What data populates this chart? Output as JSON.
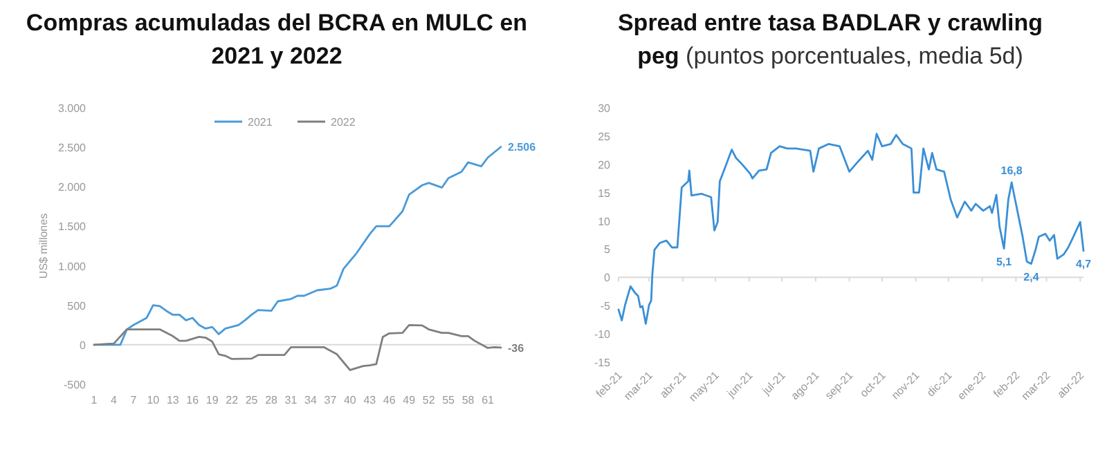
{
  "chart_data": [
    {
      "type": "line",
      "title": "Compras acumuladas del BCRA en MULC en 2021 y 2022",
      "ylabel": "US$ millones",
      "xlim": [
        1,
        63
      ],
      "xticks": [
        1,
        4,
        7,
        10,
        13,
        16,
        19,
        22,
        25,
        28,
        31,
        34,
        37,
        40,
        43,
        46,
        49,
        52,
        55,
        58,
        61
      ],
      "ylim": [
        -500,
        3000
      ],
      "yticks": [
        {
          "value": -500,
          "label": "-500"
        },
        {
          "value": 0,
          "label": "0"
        },
        {
          "value": 500,
          "label": "500"
        },
        {
          "value": 1000,
          "label": "1.000"
        },
        {
          "value": 1500,
          "label": "1.500"
        },
        {
          "value": 2000,
          "label": "2.000"
        },
        {
          "value": 2500,
          "label": "2.500"
        },
        {
          "value": 3000,
          "label": "3.000"
        }
      ],
      "legend": "top",
      "series": [
        {
          "name": "2021",
          "color": "#4a9ad8",
          "x": [
            1,
            3,
            5,
            6,
            7,
            9,
            10,
            11,
            12,
            13,
            14,
            15,
            16,
            17,
            18,
            19,
            20,
            21,
            23,
            24,
            25,
            26,
            28,
            29,
            31,
            32,
            33,
            35,
            37,
            38,
            39,
            41,
            43,
            44,
            46,
            48,
            49,
            51,
            52,
            54,
            55,
            57,
            58,
            60,
            61,
            63
          ],
          "values": [
            0,
            0,
            0,
            195,
            250,
            340,
            500,
            490,
            430,
            380,
            380,
            310,
            340,
            250,
            205,
            225,
            135,
            205,
            250,
            310,
            380,
            440,
            430,
            550,
            580,
            620,
            620,
            690,
            710,
            750,
            960,
            1160,
            1400,
            1500,
            1500,
            1690,
            1900,
            2020,
            2050,
            1990,
            2110,
            2190,
            2310,
            2260,
            2370,
            2506
          ],
          "value_labels": [
            null,
            null,
            null,
            null,
            null,
            null,
            null,
            null,
            null,
            null,
            null,
            null,
            null,
            null,
            null,
            null,
            null,
            null,
            null,
            null,
            null,
            null,
            null,
            null,
            null,
            null,
            null,
            null,
            null,
            null,
            null,
            null,
            null,
            null,
            null,
            null,
            null,
            null,
            null,
            null,
            null,
            null,
            null,
            null,
            null,
            "2.506"
          ]
        },
        {
          "name": "2022",
          "color": "#7f7f7f",
          "x": [
            1,
            3,
            4,
            6,
            8,
            10,
            11,
            13,
            14,
            15,
            17,
            18,
            19,
            20,
            21,
            22,
            25,
            26,
            29,
            30,
            31,
            33,
            36,
            38,
            39,
            40,
            42,
            43,
            44,
            45,
            46,
            48,
            49,
            51,
            52,
            54,
            55,
            57,
            58,
            59,
            61,
            62,
            63
          ],
          "values": [
            0,
            10,
            15,
            195,
            195,
            195,
            195,
            110,
            50,
            50,
            100,
            90,
            40,
            -120,
            -140,
            -180,
            -175,
            -130,
            -130,
            -130,
            -30,
            -30,
            -30,
            -120,
            -220,
            -320,
            -270,
            -260,
            -245,
            100,
            145,
            150,
            250,
            245,
            195,
            150,
            150,
            110,
            110,
            50,
            -40,
            -30,
            -36
          ],
          "value_labels": [
            null,
            null,
            null,
            null,
            null,
            null,
            null,
            null,
            null,
            null,
            null,
            null,
            null,
            null,
            null,
            null,
            null,
            null,
            null,
            null,
            null,
            null,
            null,
            null,
            null,
            null,
            null,
            null,
            null,
            null,
            null,
            null,
            null,
            null,
            null,
            null,
            null,
            null,
            null,
            null,
            null,
            null,
            "-36"
          ]
        }
      ]
    },
    {
      "type": "line",
      "title": "Spread entre tasa BADLAR y crawling peg",
      "subtitle": "(puntos porcentuales, media 5d)",
      "xlim": [
        "2021-02-01",
        "2022-04-04"
      ],
      "xticks": [
        {
          "value": "2021-02-01",
          "label": "feb-21"
        },
        {
          "value": "2021-03-01",
          "label": "mar-21"
        },
        {
          "value": "2021-04-01",
          "label": "abr-21"
        },
        {
          "value": "2021-05-01",
          "label": "may-21"
        },
        {
          "value": "2021-06-01",
          "label": "jun-21"
        },
        {
          "value": "2021-07-01",
          "label": "jul-21"
        },
        {
          "value": "2021-08-01",
          "label": "ago-21"
        },
        {
          "value": "2021-09-01",
          "label": "sep-21"
        },
        {
          "value": "2021-10-01",
          "label": "oct-21"
        },
        {
          "value": "2021-11-01",
          "label": "nov-21"
        },
        {
          "value": "2021-12-01",
          "label": "dic-21"
        },
        {
          "value": "2022-01-01",
          "label": "ene-22"
        },
        {
          "value": "2022-02-01",
          "label": "feb-22"
        },
        {
          "value": "2022-03-01",
          "label": "mar-22"
        },
        {
          "value": "2022-04-01",
          "label": "abr-22"
        }
      ],
      "ylim": [
        -15,
        30
      ],
      "yticks": [
        -15,
        -10,
        -5,
        0,
        5,
        10,
        15,
        20,
        25,
        30
      ],
      "series": [
        {
          "color": "#3a8fd6",
          "x": [
            "2021-02-01",
            "2021-02-04",
            "2021-02-07",
            "2021-02-12",
            "2021-02-16",
            "2021-02-19",
            "2021-02-21",
            "2021-02-23",
            "2021-02-26",
            "2021-03-01",
            "2021-03-03",
            "2021-03-04",
            "2021-03-06",
            "2021-03-11",
            "2021-03-17",
            "2021-03-22",
            "2021-03-27",
            "2021-03-31",
            "2021-04-06",
            "2021-04-07",
            "2021-04-09",
            "2021-04-18",
            "2021-04-27",
            "2021-04-30",
            "2021-05-03",
            "2021-05-05",
            "2021-05-10",
            "2021-05-16",
            "2021-05-20",
            "2021-05-26",
            "2021-06-02",
            "2021-06-04",
            "2021-06-10",
            "2021-06-17",
            "2021-06-21",
            "2021-06-29",
            "2021-07-06",
            "2021-07-14",
            "2021-07-27",
            "2021-07-30",
            "2021-08-04",
            "2021-08-13",
            "2021-08-23",
            "2021-09-01",
            "2021-09-09",
            "2021-09-18",
            "2021-09-22",
            "2021-09-26",
            "2021-10-01",
            "2021-10-09",
            "2021-10-14",
            "2021-10-20",
            "2021-10-28",
            "2021-10-30",
            "2021-11-04",
            "2021-11-08",
            "2021-11-13",
            "2021-11-16",
            "2021-11-20",
            "2021-11-27",
            "2021-12-03",
            "2021-12-09",
            "2021-12-16",
            "2021-12-22",
            "2021-12-26",
            "2022-01-02",
            "2022-01-08",
            "2022-01-10",
            "2022-01-14",
            "2022-01-17",
            "2022-01-21",
            "2022-01-25",
            "2022-01-28",
            "2022-02-01",
            "2022-02-07",
            "2022-02-11",
            "2022-02-15",
            "2022-02-19",
            "2022-02-22",
            "2022-02-28",
            "2022-03-04",
            "2022-03-08",
            "2022-03-11",
            "2022-03-17",
            "2022-03-21",
            "2022-03-25",
            "2022-04-01",
            "2022-04-04"
          ],
          "values": [
            -5.7,
            -7.6,
            -4.9,
            -1.6,
            -2.7,
            -3.3,
            -5.3,
            -5.1,
            -8.2,
            -4.9,
            -4.1,
            0.4,
            4.9,
            6.1,
            6.5,
            5.3,
            5.3,
            15.9,
            17,
            18.9,
            14.5,
            14.8,
            14.2,
            8.3,
            9.8,
            17,
            19.5,
            22.6,
            21.1,
            19.9,
            18.3,
            17.5,
            18.9,
            19.1,
            22,
            23.2,
            22.8,
            22.8,
            22.4,
            18.7,
            22.8,
            23.6,
            23.2,
            18.7,
            20.5,
            22.4,
            20.8,
            25.4,
            23.2,
            23.6,
            25.2,
            23.6,
            22.8,
            15,
            15,
            22.8,
            19.1,
            22,
            19.1,
            18.7,
            13.8,
            10.6,
            13.4,
            11.8,
            13,
            11.8,
            12.6,
            11.4,
            14.6,
            8.9,
            5.1,
            13.8,
            16.8,
            13,
            7.3,
            2.8,
            2.4,
            4.9,
            7.2,
            7.7,
            6.5,
            7.5,
            3.3,
            4.1,
            5.3,
            6.9,
            9.8,
            4.7
          ],
          "value_labels": [
            null,
            null,
            null,
            null,
            null,
            null,
            null,
            null,
            null,
            null,
            null,
            null,
            null,
            null,
            null,
            null,
            null,
            null,
            null,
            null,
            null,
            null,
            null,
            null,
            null,
            null,
            null,
            null,
            null,
            null,
            null,
            null,
            null,
            null,
            null,
            null,
            null,
            null,
            null,
            null,
            null,
            null,
            null,
            null,
            null,
            null,
            null,
            null,
            null,
            null,
            null,
            null,
            null,
            null,
            null,
            null,
            null,
            null,
            null,
            null,
            null,
            null,
            null,
            null,
            null,
            null,
            null,
            null,
            null,
            null,
            "5,1",
            null,
            "16,8",
            null,
            null,
            null,
            "2,4",
            null,
            null,
            null,
            null,
            null,
            null,
            null,
            null,
            null,
            null,
            "4,7"
          ]
        }
      ]
    }
  ]
}
